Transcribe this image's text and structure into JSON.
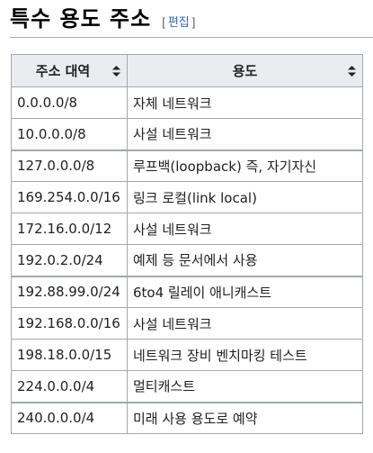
{
  "section": {
    "title": "특수 용도 주소",
    "edit_open": "[",
    "edit_link": "편집",
    "edit_close": "]"
  },
  "table": {
    "headers": {
      "address": "주소 대역",
      "purpose": "용도"
    },
    "rows": [
      {
        "address": "0.0.0.0/8",
        "purpose": "자체 네트워크",
        "group_start": false
      },
      {
        "address": "10.0.0.0/8",
        "purpose": "사설 네트워크",
        "group_start": false
      },
      {
        "address": "127.0.0.0/8",
        "purpose": "루프백(loopback) 즉, 자기자신",
        "group_start": true
      },
      {
        "address": "169.254.0.0/16",
        "purpose": "링크 로컬(link local)",
        "group_start": false
      },
      {
        "address": "172.16.0.0/12",
        "purpose": "사설 네트워크",
        "group_start": false
      },
      {
        "address": "192.0.2.0/24",
        "purpose": "예제 등 문서에서 사용",
        "group_start": false
      },
      {
        "address": "192.88.99.0/24",
        "purpose": "6to4 릴레이 애니캐스트",
        "group_start": true
      },
      {
        "address": "192.168.0.0/16",
        "purpose": "사설 네트워크",
        "group_start": false
      },
      {
        "address": "198.18.0.0/15",
        "purpose": "네트워크 장비 벤치마킹 테스트",
        "group_start": false
      },
      {
        "address": "224.0.0.0/4",
        "purpose": "멀티캐스트",
        "group_start": false
      },
      {
        "address": "240.0.0.0/4",
        "purpose": "미래 사용 용도로 예약",
        "group_start": true
      }
    ]
  },
  "colors": {
    "link": "#3366cc",
    "border": "#a2a9b1",
    "header_bg": "#eaecf0",
    "text": "#202122"
  },
  "icons": {
    "sort": "sort-icon"
  }
}
